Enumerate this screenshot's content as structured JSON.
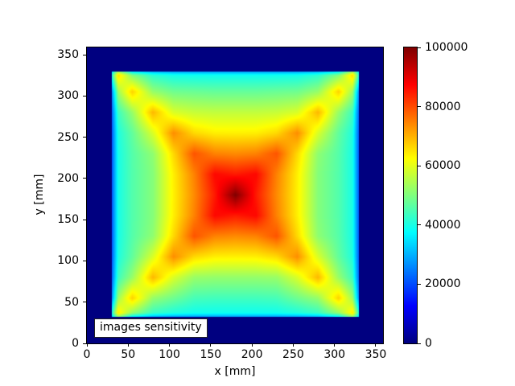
{
  "figure": {
    "background_color": "#ffffff",
    "spine_color": "#000000"
  },
  "chart_data": {
    "type": "heatmap",
    "title": "",
    "xlabel": "x [mm]",
    "ylabel": "y [mm]",
    "annotation": {
      "text": "images sensitivity"
    },
    "xlim": [
      0,
      358.8
    ],
    "ylim": [
      0,
      358.8
    ],
    "x_ticks": [
      0,
      50,
      100,
      150,
      200,
      250,
      300,
      350
    ],
    "y_ticks": [
      0,
      50,
      100,
      150,
      200,
      250,
      300,
      350
    ],
    "colormap": "jet",
    "background_value": 0,
    "background_color": "#000080",
    "colorbar": {
      "min": 0,
      "max": 100000,
      "ticks": [
        0,
        20000,
        40000,
        60000,
        80000,
        100000
      ]
    },
    "active_region_mm": {
      "x0": 30,
      "x1": 330,
      "y0": 32,
      "y1": 330
    },
    "peak": {
      "x_mm": 180,
      "y_mm": 180,
      "value": 100000
    },
    "grid_mm_step": 25,
    "grid_origin_mm": {
      "x": 30,
      "y_top": 330
    },
    "values_grid_rows_top_to_bottom": [
      [
        80000,
        46400,
        39500,
        37400,
        37000,
        37000,
        37000,
        37000,
        37000,
        37400,
        39500,
        46400,
        80000
      ],
      [
        46400,
        66900,
        52300,
        48500,
        48000,
        47500,
        47500,
        47500,
        48000,
        48500,
        52300,
        66900,
        46400
      ],
      [
        39500,
        52300,
        69600,
        58800,
        57000,
        56500,
        56500,
        56500,
        57000,
        58800,
        69600,
        52300,
        39500
      ],
      [
        37400,
        47100,
        58800,
        73700,
        66200,
        64000,
        63800,
        64000,
        66200,
        73700,
        58800,
        47100,
        37400
      ],
      [
        37000,
        45800,
        51500,
        66200,
        79300,
        74700,
        73900,
        74700,
        79300,
        66200,
        51500,
        45800,
        37000
      ],
      [
        37000,
        45600,
        50500,
        64000,
        74700,
        86900,
        85000,
        86900,
        74700,
        64000,
        50500,
        45600,
        37000
      ],
      [
        37000,
        45600,
        50500,
        63800,
        73900,
        85000,
        100000,
        85000,
        73900,
        63800,
        50500,
        45600,
        37000
      ],
      [
        37000,
        45600,
        50500,
        64000,
        74700,
        86900,
        85000,
        86900,
        74700,
        64000,
        50500,
        45600,
        37000
      ],
      [
        37000,
        45800,
        51500,
        66200,
        79300,
        74700,
        73900,
        74700,
        79300,
        66200,
        51500,
        45800,
        37000
      ],
      [
        37400,
        47100,
        58800,
        73700,
        66200,
        64000,
        63800,
        64000,
        66200,
        73700,
        58800,
        47100,
        37400
      ],
      [
        39500,
        52300,
        69600,
        58800,
        52500,
        52000,
        52000,
        52000,
        52500,
        58800,
        69600,
        52300,
        39500
      ],
      [
        46400,
        66900,
        52300,
        48500,
        44500,
        44000,
        44000,
        44000,
        44500,
        48500,
        52300,
        66900,
        46400
      ],
      [
        80000,
        46400,
        39500,
        37400,
        37000,
        37000,
        37000,
        37000,
        37000,
        37400,
        39500,
        46400,
        80000
      ]
    ],
    "edge_fade": {
      "horizontal": {
        "width_mm": 8,
        "min_factor": 0.55
      },
      "vertical": {
        "width_mm": 5,
        "min_factor": 0.75
      }
    }
  }
}
